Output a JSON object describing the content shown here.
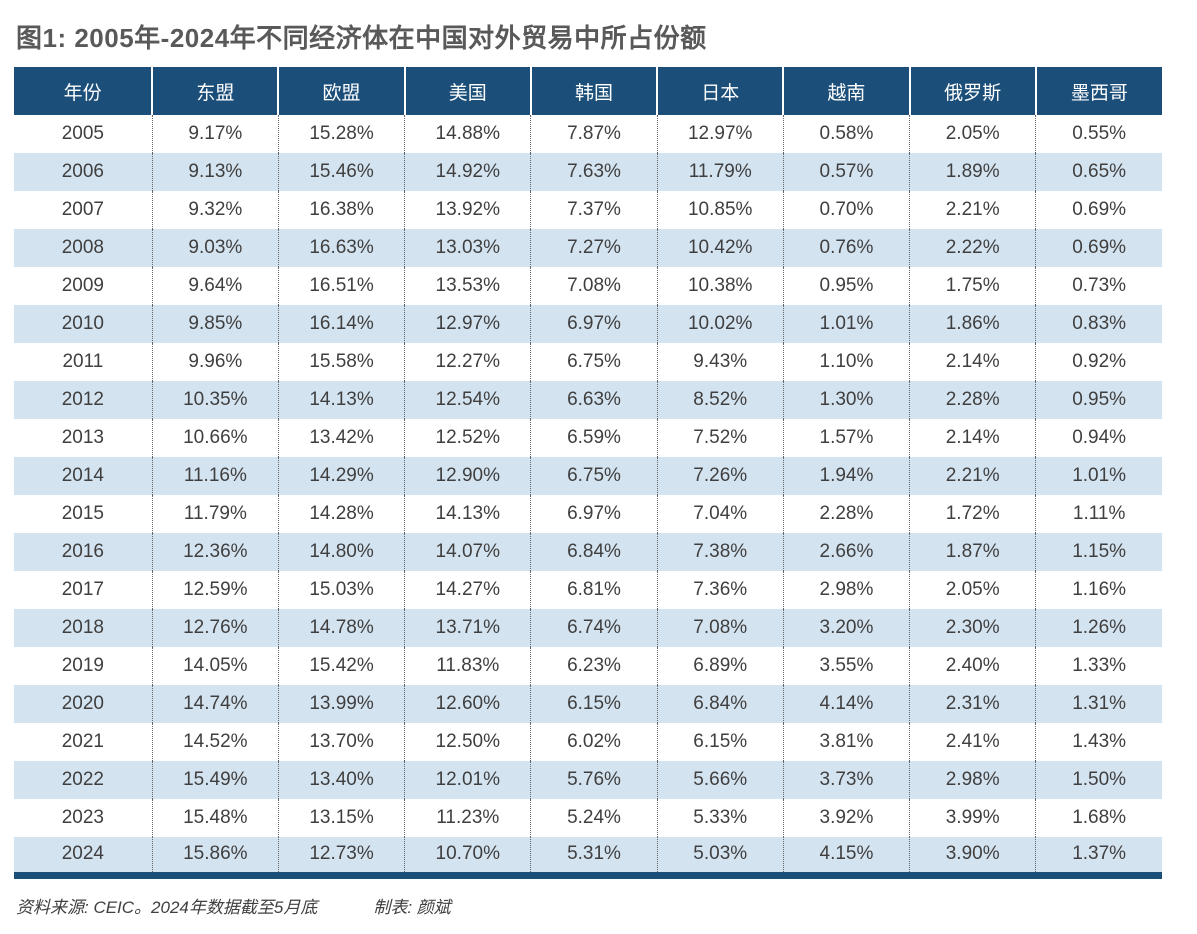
{
  "title": "图1: 2005年-2024年不同经济体在中国对外贸易中所占份额",
  "footer": {
    "source": "资料来源: CEIC。2024年数据截至5月底",
    "credit": "制表: 颜斌"
  },
  "colors": {
    "header_bg": "#1b4e79",
    "header_text": "#ffffff",
    "stripe_bg": "#d4e3f0",
    "title_text": "#595959",
    "body_text": "#3f3f3f",
    "bottom_bar": "#1b4e79"
  },
  "chart_data": {
    "type": "table",
    "title": "图1: 2005年-2024年不同经济体在中国对外贸易中所占份额",
    "columns": [
      "年份",
      "东盟",
      "欧盟",
      "美国",
      "韩国",
      "日本",
      "越南",
      "俄罗斯",
      "墨西哥"
    ],
    "rows": [
      [
        "2005",
        "9.17%",
        "15.28%",
        "14.88%",
        "7.87%",
        "12.97%",
        "0.58%",
        "2.05%",
        "0.55%"
      ],
      [
        "2006",
        "9.13%",
        "15.46%",
        "14.92%",
        "7.63%",
        "11.79%",
        "0.57%",
        "1.89%",
        "0.65%"
      ],
      [
        "2007",
        "9.32%",
        "16.38%",
        "13.92%",
        "7.37%",
        "10.85%",
        "0.70%",
        "2.21%",
        "0.69%"
      ],
      [
        "2008",
        "9.03%",
        "16.63%",
        "13.03%",
        "7.27%",
        "10.42%",
        "0.76%",
        "2.22%",
        "0.69%"
      ],
      [
        "2009",
        "9.64%",
        "16.51%",
        "13.53%",
        "7.08%",
        "10.38%",
        "0.95%",
        "1.75%",
        "0.73%"
      ],
      [
        "2010",
        "9.85%",
        "16.14%",
        "12.97%",
        "6.97%",
        "10.02%",
        "1.01%",
        "1.86%",
        "0.83%"
      ],
      [
        "2011",
        "9.96%",
        "15.58%",
        "12.27%",
        "6.75%",
        "9.43%",
        "1.10%",
        "2.14%",
        "0.92%"
      ],
      [
        "2012",
        "10.35%",
        "14.13%",
        "12.54%",
        "6.63%",
        "8.52%",
        "1.30%",
        "2.28%",
        "0.95%"
      ],
      [
        "2013",
        "10.66%",
        "13.42%",
        "12.52%",
        "6.59%",
        "7.52%",
        "1.57%",
        "2.14%",
        "0.94%"
      ],
      [
        "2014",
        "11.16%",
        "14.29%",
        "12.90%",
        "6.75%",
        "7.26%",
        "1.94%",
        "2.21%",
        "1.01%"
      ],
      [
        "2015",
        "11.79%",
        "14.28%",
        "14.13%",
        "6.97%",
        "7.04%",
        "2.28%",
        "1.72%",
        "1.11%"
      ],
      [
        "2016",
        "12.36%",
        "14.80%",
        "14.07%",
        "6.84%",
        "7.38%",
        "2.66%",
        "1.87%",
        "1.15%"
      ],
      [
        "2017",
        "12.59%",
        "15.03%",
        "14.27%",
        "6.81%",
        "7.36%",
        "2.98%",
        "2.05%",
        "1.16%"
      ],
      [
        "2018",
        "12.76%",
        "14.78%",
        "13.71%",
        "6.74%",
        "7.08%",
        "3.20%",
        "2.30%",
        "1.26%"
      ],
      [
        "2019",
        "14.05%",
        "15.42%",
        "11.83%",
        "6.23%",
        "6.89%",
        "3.55%",
        "2.40%",
        "1.33%"
      ],
      [
        "2020",
        "14.74%",
        "13.99%",
        "12.60%",
        "6.15%",
        "6.84%",
        "4.14%",
        "2.31%",
        "1.31%"
      ],
      [
        "2021",
        "14.52%",
        "13.70%",
        "12.50%",
        "6.02%",
        "6.15%",
        "3.81%",
        "2.41%",
        "1.43%"
      ],
      [
        "2022",
        "15.49%",
        "13.40%",
        "12.01%",
        "5.76%",
        "5.66%",
        "3.73%",
        "2.98%",
        "1.50%"
      ],
      [
        "2023",
        "15.48%",
        "13.15%",
        "11.23%",
        "5.24%",
        "5.33%",
        "3.92%",
        "3.99%",
        "1.68%"
      ],
      [
        "2024",
        "15.86%",
        "12.73%",
        "10.70%",
        "5.31%",
        "5.03%",
        "4.15%",
        "3.90%",
        "1.37%"
      ]
    ]
  }
}
